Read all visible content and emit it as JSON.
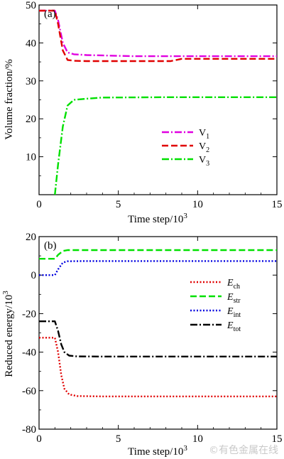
{
  "chart_data": [
    {
      "type": "line",
      "panel_label": "(a)",
      "xlabel": "Time step/10",
      "xlabel_sup": "3",
      "ylabel": "Volume fraction/%",
      "xlim": [
        0,
        15
      ],
      "ylim": [
        0,
        50
      ],
      "xticks": [
        "0",
        "5",
        "10",
        "15"
      ],
      "yticks": [
        "10",
        "20",
        "30",
        "40",
        "50"
      ],
      "legend_position": "center-right",
      "series": [
        {
          "name": "V",
          "sub": "1",
          "color": "#e000e0",
          "dash": "dashdot",
          "x": [
            0,
            1.0,
            1.2,
            1.5,
            1.8,
            2.2,
            3,
            6,
            9,
            12,
            15
          ],
          "y": [
            48.5,
            48.5,
            46,
            40,
            37.5,
            37,
            36.8,
            36.5,
            36.5,
            36.5,
            36.5
          ]
        },
        {
          "name": "V",
          "sub": "2",
          "color": "#e00000",
          "dash": "dashed",
          "x": [
            0,
            1.0,
            1.2,
            1.5,
            1.8,
            2.2,
            3,
            6,
            8.3,
            9,
            12,
            15
          ],
          "y": [
            48.5,
            48.5,
            45,
            38,
            35.5,
            35.3,
            35.2,
            35.2,
            35.2,
            35.8,
            35.8,
            35.8
          ]
        },
        {
          "name": "V",
          "sub": "3",
          "color": "#00e000",
          "dash": "dashdot",
          "x": [
            1.0,
            1.2,
            1.5,
            1.8,
            2.2,
            3,
            4,
            8,
            12,
            15
          ],
          "y": [
            0,
            8,
            18,
            23.5,
            25,
            25.3,
            25.6,
            25.7,
            25.7,
            25.7
          ]
        }
      ]
    },
    {
      "type": "line",
      "panel_label": "(b)",
      "xlabel": "Time step/10",
      "xlabel_sup": "3",
      "ylabel": "Reduced energy/10",
      "ylabel_sup": "3",
      "xlim": [
        0,
        15
      ],
      "ylim": [
        -80,
        20
      ],
      "xticks": [
        "0",
        "5",
        "10",
        "15"
      ],
      "yticks": [
        "20",
        "0",
        "-20",
        "-40",
        "-60",
        "-80"
      ],
      "legend_position": "right",
      "series": [
        {
          "name": "E",
          "sub": "ch",
          "color": "#e00000",
          "dash": "dotted",
          "x": [
            0,
            1.0,
            1.2,
            1.4,
            1.6,
            1.9,
            2.4,
            4,
            8,
            12,
            15
          ],
          "y": [
            -32.5,
            -32.5,
            -40,
            -52,
            -59,
            -62,
            -62.8,
            -63,
            -63,
            -63,
            -63
          ]
        },
        {
          "name": "E",
          "sub": "str",
          "color": "#00e000",
          "dash": "dashed",
          "x": [
            0,
            1.0,
            1.2,
            1.5,
            1.8,
            3,
            8,
            12,
            15
          ],
          "y": [
            8.5,
            8.5,
            10.5,
            12.5,
            13,
            13,
            13,
            13,
            13
          ]
        },
        {
          "name": "E",
          "sub": "int",
          "color": "#0000e0",
          "dash": "dotted",
          "x": [
            0,
            1.0,
            1.2,
            1.5,
            1.8,
            3,
            8,
            12,
            15
          ],
          "y": [
            0,
            0,
            3,
            6.5,
            7.2,
            7.3,
            7.3,
            7.3,
            7.3
          ]
        },
        {
          "name": "E",
          "sub": "tot",
          "color": "#000000",
          "dash": "dashdot",
          "x": [
            0,
            1.0,
            1.2,
            1.4,
            1.6,
            1.9,
            2.4,
            4,
            8,
            12,
            15
          ],
          "y": [
            -24,
            -24,
            -29,
            -36,
            -40,
            -41.8,
            -42.2,
            -42.3,
            -42.3,
            -42.3,
            -42.3
          ]
        }
      ]
    }
  ],
  "watermark": "©有色金属在线"
}
